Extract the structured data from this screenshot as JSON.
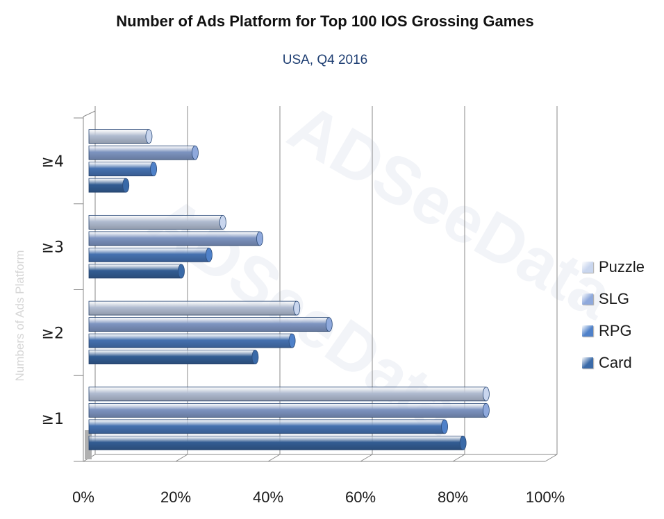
{
  "chart_data": {
    "type": "bar",
    "orientation": "horizontal",
    "title": "Number of Ads Platform for Top 100 IOS Grossing Games",
    "subtitle": "USA, Q4 2016",
    "xlabel": "",
    "ylabel": "Numbers of Ads Platform",
    "categories": [
      "≥1",
      "≥2",
      "≥3",
      "≥4"
    ],
    "xlim": [
      0,
      100
    ],
    "x_ticks": [
      "0%",
      "20%",
      "40%",
      "60%",
      "80%",
      "100%"
    ],
    "grid": true,
    "legend_position": "right",
    "series": [
      {
        "name": "Puzzle",
        "color": "#c9d6ee",
        "values": [
          86,
          45,
          29,
          13
        ]
      },
      {
        "name": "SLG",
        "color": "#8fa9dc",
        "values": [
          86,
          52,
          37,
          23
        ]
      },
      {
        "name": "RPG",
        "color": "#4f81c9",
        "values": [
          77,
          44,
          26,
          14
        ]
      },
      {
        "name": "Card",
        "color": "#3a6aa8",
        "values": [
          81,
          36,
          20,
          8
        ]
      }
    ],
    "watermark": "ADSeeData"
  }
}
